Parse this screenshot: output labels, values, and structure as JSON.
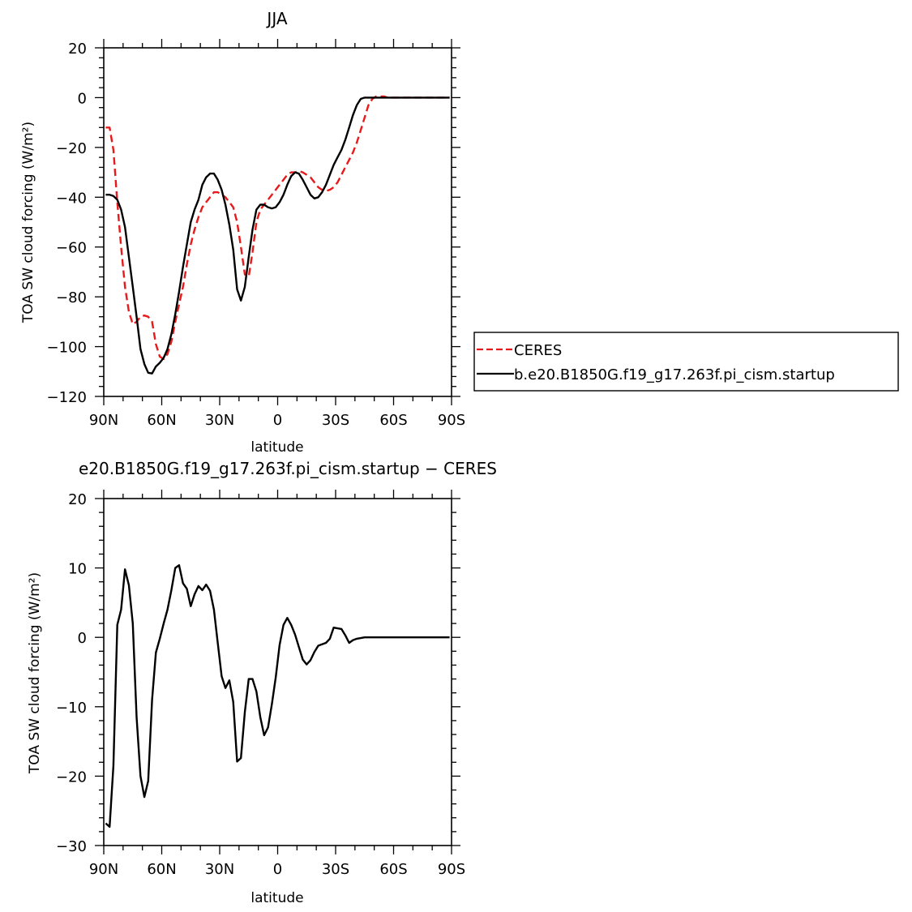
{
  "chart_data": [
    {
      "type": "line",
      "title": "JJA",
      "xlabel": "latitude",
      "ylabel": "TOA SW cloud forcing (W/m²)",
      "xlim": [
        90,
        -90
      ],
      "ylim": [
        -120,
        20
      ],
      "xticks": [
        90,
        60,
        30,
        0,
        -30,
        -60,
        -90
      ],
      "xtick_labels": [
        "90N",
        "60N",
        "30N",
        "0",
        "30S",
        "60S",
        "90S"
      ],
      "yticks": [
        20,
        0,
        -20,
        -40,
        -60,
        -80,
        -100,
        -120
      ],
      "ytick_labels": [
        "20",
        "0",
        "−20",
        "−40",
        "−60",
        "−80",
        "−100",
        "−120"
      ],
      "legend": {
        "placement": "right"
      },
      "series": [
        {
          "name": "CERES",
          "color": "#e8191a",
          "dash": "dashed",
          "x": [
            89,
            87,
            85,
            83,
            81,
            79,
            77,
            75,
            73,
            71,
            69,
            67,
            65,
            63,
            61,
            59,
            57,
            55,
            53,
            51,
            49,
            47,
            45,
            43,
            41,
            39,
            37,
            35,
            33,
            31,
            29,
            27,
            25,
            23,
            21,
            19,
            17,
            15,
            13,
            11,
            9,
            7,
            5,
            3,
            1,
            -1,
            -3,
            -5,
            -7,
            -9,
            -11,
            -13,
            -15,
            -17,
            -19,
            -21,
            -23,
            -25,
            -27,
            -29,
            -31,
            -33,
            -35,
            -37,
            -39,
            -41,
            -43,
            -45,
            -47,
            -49,
            -51,
            -53,
            -55,
            -57,
            -59,
            -61,
            -63,
            -65,
            -67,
            -69,
            -71,
            -73,
            -75,
            -77,
            -79,
            -81,
            -83,
            -85,
            -87,
            -89
          ],
          "values": [
            -12,
            -12,
            -21,
            -42,
            -60,
            -76,
            -86,
            -91,
            -90,
            -88,
            -87.5,
            -88,
            -90,
            -99,
            -104,
            -105,
            -103,
            -98,
            -90,
            -83,
            -76,
            -67,
            -59,
            -53,
            -48,
            -44,
            -42,
            -40,
            -38,
            -38,
            -39,
            -40,
            -42,
            -44,
            -50,
            -60,
            -71,
            -72,
            -62,
            -50,
            -45,
            -43,
            -41,
            -39,
            -37,
            -35,
            -33,
            -31,
            -30,
            -30,
            -29.5,
            -30,
            -31,
            -32,
            -34,
            -36,
            -37,
            -37.5,
            -37,
            -36,
            -34,
            -31,
            -28,
            -25,
            -22,
            -18,
            -13,
            -8,
            -3,
            -0.5,
            0.5,
            0.5,
            0.5,
            0,
            0,
            0,
            0,
            0,
            0,
            0,
            0,
            0,
            0,
            0,
            0,
            0,
            0,
            0,
            0,
            0
          ]
        },
        {
          "name": "b.e20.B1850G.f19_g17.263f.pi_cism.startup",
          "color": "#000000",
          "dash": "solid",
          "x": [
            89,
            87,
            85,
            83,
            81,
            79,
            77,
            75,
            73,
            71,
            69,
            67,
            65,
            63,
            61,
            59,
            57,
            55,
            53,
            51,
            49,
            47,
            45,
            43,
            41,
            39,
            37,
            35,
            33,
            31,
            29,
            27,
            25,
            23,
            21,
            19,
            17,
            15,
            13,
            11,
            9,
            7,
            5,
            3,
            1,
            -1,
            -3,
            -5,
            -7,
            -9,
            -11,
            -13,
            -15,
            -17,
            -19,
            -21,
            -23,
            -25,
            -27,
            -29,
            -31,
            -33,
            -35,
            -37,
            -39,
            -41,
            -43,
            -45,
            -47,
            -49,
            -51,
            -53,
            -55,
            -57,
            -59,
            -61,
            -63,
            -65,
            -67,
            -69,
            -71,
            -73,
            -75,
            -77,
            -79,
            -81,
            -83,
            -85,
            -87,
            -89
          ],
          "values": [
            -39,
            -39,
            -39.5,
            -41,
            -45,
            -52,
            -64,
            -76,
            -88,
            -101,
            -107,
            -110.5,
            -110.8,
            -108,
            -106.5,
            -104.5,
            -101,
            -95,
            -87,
            -78,
            -68,
            -59,
            -50,
            -45,
            -41,
            -35,
            -32,
            -30.5,
            -30.5,
            -33,
            -37,
            -43,
            -51,
            -61,
            -77,
            -81.5,
            -76,
            -64,
            -53,
            -45,
            -43,
            -43,
            -44,
            -44.5,
            -44,
            -42,
            -39,
            -35,
            -31.5,
            -30,
            -30.5,
            -33,
            -36,
            -39,
            -40.5,
            -40,
            -38,
            -35,
            -31,
            -27,
            -24,
            -21,
            -17,
            -12,
            -7,
            -3,
            -0.5,
            0,
            0,
            0,
            0,
            0,
            0,
            0,
            0,
            0,
            0,
            0,
            0,
            0,
            0,
            0,
            0,
            0,
            0,
            0,
            0,
            0,
            0,
            0
          ]
        }
      ]
    },
    {
      "type": "line",
      "title": "e20.B1850G.f19_g17.263f.pi_cism.startup − CERES",
      "xlabel": "latitude",
      "ylabel": "TOA SW cloud forcing (W/m²)",
      "xlim": [
        90,
        -90
      ],
      "ylim": [
        -30,
        20
      ],
      "xticks": [
        90,
        60,
        30,
        0,
        -30,
        -60,
        -90
      ],
      "xtick_labels": [
        "90N",
        "60N",
        "30N",
        "0",
        "30S",
        "60S",
        "90S"
      ],
      "yticks": [
        20,
        10,
        0,
        -10,
        -20,
        -30
      ],
      "ytick_labels": [
        "20",
        "10",
        "0",
        "−10",
        "−20",
        "−30"
      ],
      "series": [
        {
          "color": "#000000",
          "dash": "solid",
          "x": [
            89,
            87,
            85,
            83,
            81,
            79,
            77,
            75,
            73,
            71,
            69,
            67,
            65,
            63,
            61,
            59,
            57,
            55,
            53,
            51,
            49,
            47,
            45,
            43,
            41,
            39,
            37,
            35,
            33,
            31,
            29,
            27,
            25,
            23,
            21,
            19,
            17,
            15,
            13,
            11,
            9,
            7,
            5,
            3,
            1,
            -1,
            -3,
            -5,
            -7,
            -9,
            -11,
            -13,
            -15,
            -17,
            -19,
            -21,
            -23,
            -25,
            -27,
            -29,
            -31,
            -33,
            -35,
            -37,
            -39,
            -41,
            -43,
            -45,
            -47,
            -49,
            -51,
            -53,
            -55,
            -57,
            -59,
            -61,
            -63,
            -65,
            -67,
            -69,
            -71,
            -73,
            -75,
            -77,
            -79,
            -81,
            -83,
            -85,
            -87,
            -89
          ],
          "values": [
            -26.8,
            -27.3,
            -18.5,
            1.8,
            4,
            9.8,
            7.5,
            2,
            -11.5,
            -20,
            -23,
            -20.7,
            -9,
            -2.2,
            -0.2,
            2,
            4,
            6.8,
            10,
            10.4,
            7.8,
            7,
            4.5,
            6.2,
            7.4,
            6.8,
            7.6,
            6.7,
            4,
            -0.8,
            -5.6,
            -7.3,
            -6.2,
            -9.3,
            -17.9,
            -17.4,
            -10.8,
            -6,
            -6,
            -7.8,
            -11.5,
            -14.1,
            -13,
            -9.6,
            -5.8,
            -1.1,
            1.8,
            2.8,
            1.8,
            0.4,
            -1.4,
            -3.2,
            -3.9,
            -3.3,
            -2.1,
            -1.2,
            -1,
            -0.8,
            -0.2,
            1.4,
            1.3,
            1.2,
            0.3,
            -0.8,
            -0.4,
            -0.2,
            -0.1,
            0,
            0,
            0,
            0,
            0,
            0,
            0,
            0,
            0,
            0,
            0,
            0,
            0,
            0,
            0,
            0,
            0,
            0,
            0,
            0,
            0,
            0,
            0
          ]
        }
      ]
    }
  ]
}
